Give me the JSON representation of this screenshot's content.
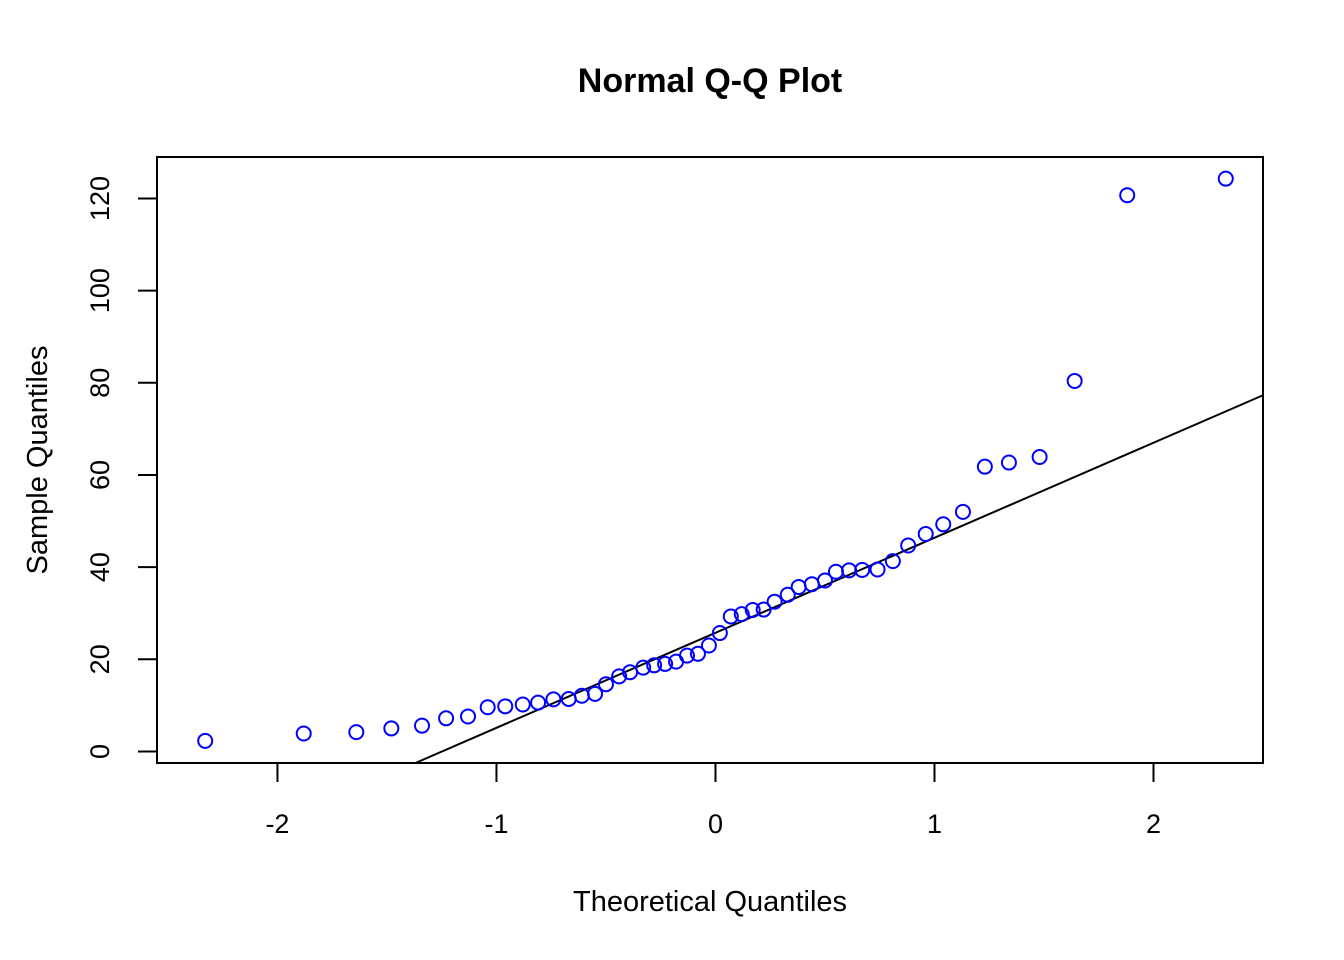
{
  "chart_data": {
    "type": "scatter",
    "title": "Normal Q-Q Plot",
    "xlabel": "Theoretical Quantiles",
    "ylabel": "Sample Quantiles",
    "xlim": [
      -2.55,
      2.5
    ],
    "ylim": [
      -2.5,
      129
    ],
    "x_ticks": [
      -2,
      -1,
      0,
      1,
      2
    ],
    "x_tick_labels": [
      "-2",
      "-1",
      "0",
      "1",
      "2"
    ],
    "y_ticks": [
      0,
      20,
      40,
      60,
      80,
      100,
      120
    ],
    "y_tick_labels": [
      "0",
      "20",
      "40",
      "60",
      "80",
      "100",
      "120"
    ],
    "grid": false,
    "point_color": "#0000ff",
    "line_color": "#000000",
    "reference_line": {
      "x": [
        -1.37,
        2.5
      ],
      "y": [
        -2.5,
        77.3
      ]
    },
    "points": {
      "x": [
        -2.33,
        -1.88,
        -1.64,
        -1.48,
        -1.34,
        -1.23,
        -1.13,
        -1.04,
        -0.96,
        -0.88,
        -0.81,
        -0.74,
        -0.67,
        -0.61,
        -0.55,
        -0.5,
        -0.44,
        -0.39,
        -0.33,
        -0.28,
        -0.23,
        -0.18,
        -0.13,
        -0.08,
        -0.03,
        0.02,
        0.07,
        0.12,
        0.17,
        0.22,
        0.27,
        0.33,
        0.38,
        0.44,
        0.5,
        0.55,
        0.61,
        0.67,
        0.74,
        0.81,
        0.88,
        0.96,
        1.04,
        1.13,
        1.23,
        1.34,
        1.48,
        1.64,
        1.88,
        2.33
      ],
      "y": [
        2.3,
        3.9,
        4.2,
        5.0,
        5.6,
        7.2,
        7.6,
        9.6,
        9.8,
        10.2,
        10.6,
        11.3,
        11.4,
        12.1,
        12.5,
        14.6,
        16.3,
        17.2,
        18.2,
        18.7,
        19.0,
        19.5,
        20.8,
        21.2,
        23.0,
        25.7,
        29.3,
        29.8,
        30.7,
        30.8,
        32.5,
        34.0,
        35.7,
        36.3,
        37.1,
        39.0,
        39.3,
        39.4,
        39.5,
        41.3,
        44.7,
        47.2,
        49.3,
        52.0,
        61.8,
        62.7,
        63.9,
        80.4,
        120.7,
        124.3
      ]
    }
  }
}
